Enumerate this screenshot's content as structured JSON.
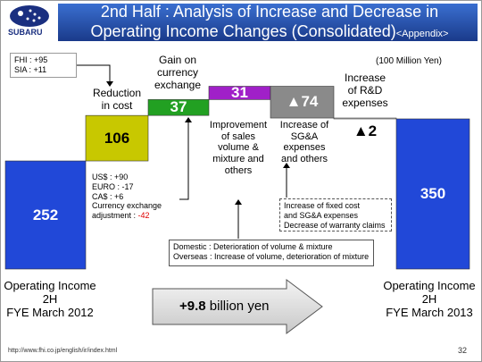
{
  "header": {
    "title_line1": "2nd Half : Analysis of Increase and Decrease in",
    "title_line2": "Operating Income Changes (Consolidated)",
    "appendix": "<Appendix>",
    "logo": "SUBARU"
  },
  "chart_data": {
    "type": "waterfall",
    "unit": "(100 Million Yen)",
    "categories": [
      "Operating Income\n2H\nFYE March 2012",
      "Reduction\nin cost",
      "Gain on\ncurrency\nexchange",
      "Improvement\nof sales\nvolume &\nmixture and\nothers",
      "Increase of\nSG&A\nexpenses\nand others",
      "Increase\nof R&D\nexpenses",
      "Operating Income\n2H\nFYE March 2013"
    ],
    "values": [
      252,
      106,
      37,
      31,
      -74,
      -2,
      350
    ],
    "value_labels": [
      "252",
      "106",
      "37",
      "31",
      "▲74",
      "▲2",
      "350"
    ],
    "measures": [
      "absolute",
      "relative",
      "relative",
      "relative",
      "relative",
      "relative",
      "total"
    ],
    "colors": [
      "#2148d8",
      "#c8c800",
      "#22a022",
      "#a020c8",
      "#8a8a8a",
      "#ffffff",
      "#2148d8"
    ],
    "annotations": {
      "segment_notes": [
        "FHI : +95",
        "SIA : +11"
      ],
      "currency_notes": [
        "US$ : +90",
        "EURO : -17",
        "CA$ : +6",
        "Currency exchange\nadjustment : "
      ],
      "currency_adjustment": "-42",
      "sga_note": "Increase of fixed cost\nand SG&A expenses\nDecrease of warranty claims",
      "volume_notes": [
        "Domestic : Deterioration of volume & mixture",
        "Overseas : Increase of volume, deterioration of mixture"
      ],
      "change_amount": "+9.8",
      "change_unit": "billion yen"
    }
  },
  "footer": {
    "url": "http://www.fhi.co.jp/english/ir/index.html",
    "page": "32"
  }
}
